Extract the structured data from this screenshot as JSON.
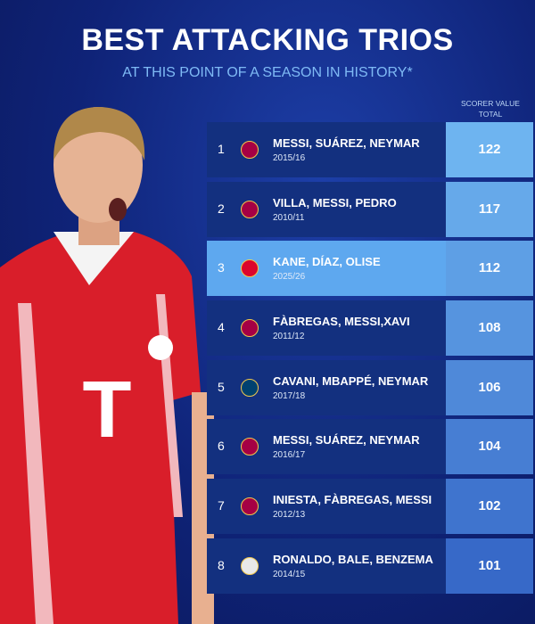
{
  "header": {
    "title": "BEST ATTACKING TRIOS",
    "subtitle": "AT THIS POINT OF A SEASON IN HISTORY*",
    "column_label": "SCORER VALUE TOTAL"
  },
  "table": {
    "highlight_color": "#5ea8ef",
    "rows": [
      {
        "rank": "1",
        "trio": "MESSI, SUÁREZ, NEYMAR",
        "season": "2015/16",
        "value": "122",
        "badge_color": "#a50044"
      },
      {
        "rank": "2",
        "trio": "VILLA, MESSI, PEDRO",
        "season": "2010/11",
        "value": "117",
        "badge_color": "#a50044"
      },
      {
        "rank": "3",
        "trio": "KANE, DÍAZ, OLISE",
        "season": "2025/26",
        "value": "112",
        "badge_color": "#dc052d"
      },
      {
        "rank": "4",
        "trio": "FÀBREGAS, MESSI,XAVI",
        "season": "2011/12",
        "value": "108",
        "badge_color": "#a50044"
      },
      {
        "rank": "5",
        "trio": "CAVANI, MBAPPÉ, NEYMAR",
        "season": "2017/18",
        "value": "106",
        "badge_color": "#004170"
      },
      {
        "rank": "6",
        "trio": "MESSI, SUÁREZ, NEYMAR",
        "season": "2016/17",
        "value": "104",
        "badge_color": "#a50044"
      },
      {
        "rank": "7",
        "trio": "INIESTA, FÀBREGAS, MESSI",
        "season": "2012/13",
        "value": "102",
        "badge_color": "#a50044"
      },
      {
        "rank": "8",
        "trio": "RONALDO, BALE, BENZEMA",
        "season": "2014/15",
        "value": "101",
        "badge_color": "#e8e8e8"
      }
    ]
  }
}
